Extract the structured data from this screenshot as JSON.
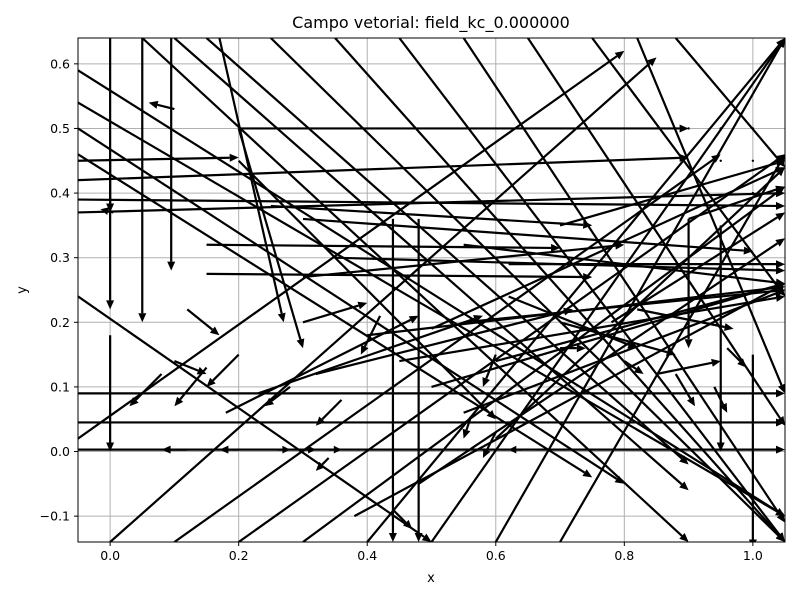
{
  "chart_data": {
    "type": "quiver",
    "title": "Campo vetorial: field_kc_0.000000",
    "xlabel": "x",
    "ylabel": "y",
    "xlim": [
      -0.05,
      1.05
    ],
    "ylim": [
      -0.14,
      0.64
    ],
    "xticks": [
      0.0,
      0.2,
      0.4,
      0.6,
      0.8,
      1.0
    ],
    "xtick_labels": [
      "0.0",
      "0.2",
      "0.4",
      "0.6",
      "0.8",
      "1.0"
    ],
    "yticks": [
      -0.1,
      0.0,
      0.1,
      0.2,
      0.3,
      0.4,
      0.5,
      0.6
    ],
    "ytick_labels": [
      "−0.1",
      "0.0",
      "0.1",
      "0.2",
      "0.3",
      "0.4",
      "0.5",
      "0.6"
    ],
    "grid": true,
    "arrow_color": "#000000",
    "grid_color": "#b0b0b0",
    "vectors": [
      {
        "x": 0.0,
        "y": 0.64,
        "u": 0.0,
        "v": -0.27
      },
      {
        "x": 0.0,
        "y": 0.45,
        "u": 0.0,
        "v": -0.23
      },
      {
        "x": 0.0,
        "y": 0.18,
        "u": 0.0,
        "v": -0.18
      },
      {
        "x": 0.05,
        "y": 0.64,
        "u": 0.0,
        "v": -0.44
      },
      {
        "x": 0.095,
        "y": 0.64,
        "u": 0.0,
        "v": -0.36
      },
      {
        "x": 0.005,
        "y": 0.37,
        "u": -0.02,
        "v": 0.005
      },
      {
        "x": 0.1,
        "y": 0.53,
        "u": -0.04,
        "v": 0.01
      },
      {
        "x": 0.12,
        "y": 0.22,
        "u": 0.05,
        "v": -0.04
      },
      {
        "x": 0.1,
        "y": 0.14,
        "u": 0.05,
        "v": -0.02
      },
      {
        "x": 0.44,
        "y": 0.36,
        "u": 0.0,
        "v": -0.5
      },
      {
        "x": 0.48,
        "y": 0.36,
        "u": 0.0,
        "v": -0.5
      },
      {
        "x": 0.9,
        "y": 0.36,
        "u": 0.0,
        "v": -0.2
      },
      {
        "x": 0.95,
        "y": 0.35,
        "u": 0.0,
        "v": -0.35
      },
      {
        "x": 1.0,
        "y": 0.15,
        "u": 0.0,
        "v": -0.3
      },
      {
        "x": -0.05,
        "y": 0.45,
        "u": 0.25,
        "v": 0.005
      },
      {
        "x": -0.05,
        "y": 0.42,
        "u": 0.95,
        "v": 0.035
      },
      {
        "x": -0.05,
        "y": 0.39,
        "u": 1.1,
        "v": -0.01
      },
      {
        "x": -0.05,
        "y": 0.37,
        "u": 1.1,
        "v": 0.03
      },
      {
        "x": -0.05,
        "y": 0.09,
        "u": 1.1,
        "v": 0.0
      },
      {
        "x": -0.05,
        "y": 0.045,
        "u": 1.1,
        "v": 0.0
      },
      {
        "x": -0.05,
        "y": 0.003,
        "u": 1.1,
        "v": 0.0
      },
      {
        "x": 0.15,
        "y": 0.32,
        "u": 0.55,
        "v": -0.005
      },
      {
        "x": 0.15,
        "y": 0.275,
        "u": 0.6,
        "v": -0.005
      },
      {
        "x": 0.2,
        "y": 0.5,
        "u": 0.7,
        "v": 0.0
      },
      {
        "x": 0.3,
        "y": 0.36,
        "u": 0.7,
        "v": -0.05
      },
      {
        "x": 0.35,
        "y": 0.3,
        "u": 0.7,
        "v": -0.02
      },
      {
        "x": 0.4,
        "y": 0.18,
        "u": 0.65,
        "v": 0.075
      },
      {
        "x": 0.45,
        "y": 0.14,
        "u": 0.6,
        "v": 0.1
      },
      {
        "x": 0.5,
        "y": 0.1,
        "u": 0.55,
        "v": 0.16
      },
      {
        "x": 0.55,
        "y": 0.06,
        "u": 0.5,
        "v": 0.19
      },
      {
        "x": -0.05,
        "y": 0.24,
        "u": 0.55,
        "v": -0.38
      },
      {
        "x": -0.05,
        "y": 0.02,
        "u": 0.85,
        "v": 0.6
      },
      {
        "x": 0.0,
        "y": -0.14,
        "u": 0.85,
        "v": 0.75
      },
      {
        "x": 0.1,
        "y": -0.14,
        "u": 0.85,
        "v": 0.6
      },
      {
        "x": 0.2,
        "y": -0.14,
        "u": 0.85,
        "v": 0.6
      },
      {
        "x": 0.3,
        "y": -0.14,
        "u": 0.75,
        "v": 0.55
      },
      {
        "x": 0.4,
        "y": -0.14,
        "u": 0.65,
        "v": 0.78
      },
      {
        "x": 0.5,
        "y": -0.14,
        "u": 0.55,
        "v": 0.78
      },
      {
        "x": 0.6,
        "y": -0.14,
        "u": 0.45,
        "v": 0.78
      },
      {
        "x": 0.7,
        "y": -0.14,
        "u": 0.35,
        "v": 0.6
      },
      {
        "x": -0.05,
        "y": 0.59,
        "u": 1.1,
        "v": -0.69
      },
      {
        "x": -0.05,
        "y": 0.54,
        "u": 1.1,
        "v": -0.64
      },
      {
        "x": -0.05,
        "y": 0.5,
        "u": 0.85,
        "v": -0.55
      },
      {
        "x": -0.05,
        "y": 0.46,
        "u": 0.8,
        "v": -0.5
      },
      {
        "x": 0.05,
        "y": 0.64,
        "u": 0.85,
        "v": -0.78
      },
      {
        "x": 0.1,
        "y": 0.64,
        "u": 0.8,
        "v": -0.7
      },
      {
        "x": 0.15,
        "y": 0.64,
        "u": 0.75,
        "v": -0.66
      },
      {
        "x": 0.25,
        "y": 0.64,
        "u": 0.8,
        "v": -0.78
      },
      {
        "x": 0.35,
        "y": 0.64,
        "u": 0.7,
        "v": -0.78
      },
      {
        "x": 0.45,
        "y": 0.64,
        "u": 0.6,
        "v": -0.78
      },
      {
        "x": 0.55,
        "y": 0.64,
        "u": 0.5,
        "v": -0.75
      },
      {
        "x": 0.65,
        "y": 0.64,
        "u": 0.4,
        "v": -0.6
      },
      {
        "x": 0.75,
        "y": 0.64,
        "u": 0.3,
        "v": -0.4
      },
      {
        "x": 0.2,
        "y": 0.45,
        "u": 0.4,
        "v": -0.4
      },
      {
        "x": 0.17,
        "y": 0.64,
        "u": 0.1,
        "v": -0.44
      },
      {
        "x": 0.2,
        "y": 0.5,
        "u": 0.1,
        "v": -0.34
      },
      {
        "x": 0.62,
        "y": 0.24,
        "u": 0.2,
        "v": -0.08
      },
      {
        "x": 0.7,
        "y": 0.2,
        "u": 0.18,
        "v": -0.05
      },
      {
        "x": 0.82,
        "y": 0.22,
        "u": 0.15,
        "v": -0.03
      },
      {
        "x": 0.85,
        "y": 0.12,
        "u": 0.1,
        "v": 0.02
      },
      {
        "x": 0.62,
        "y": 0.29,
        "u": 0.43,
        "v": 0.0
      },
      {
        "x": 0.6,
        "y": 0.14,
        "u": 0.45,
        "v": 0.12
      },
      {
        "x": 0.55,
        "y": 0.2,
        "u": 0.5,
        "v": 0.05
      },
      {
        "x": 0.6,
        "y": 0.02,
        "u": 0.45,
        "v": 0.42
      },
      {
        "x": 0.5,
        "y": 0.19,
        "u": 0.55,
        "v": 0.25
      },
      {
        "x": 0.7,
        "y": 0.35,
        "u": 0.35,
        "v": 0.1
      },
      {
        "x": 0.78,
        "y": 0.2,
        "u": 0.27,
        "v": 0.17
      },
      {
        "x": 0.48,
        "y": -0.05,
        "u": 0.57,
        "v": 0.38
      },
      {
        "x": 0.38,
        "y": -0.1,
        "u": 0.67,
        "v": 0.36
      },
      {
        "x": 0.88,
        "y": 0.64,
        "u": 0.17,
        "v": -0.2
      },
      {
        "x": 0.82,
        "y": 0.64,
        "u": 0.23,
        "v": -0.55
      },
      {
        "x": 0.3,
        "y": 0.27,
        "u": 0.5,
        "v": 0.05
      },
      {
        "x": 0.32,
        "y": 0.12,
        "u": 0.4,
        "v": 0.1
      },
      {
        "x": 0.23,
        "y": 0.09,
        "u": 0.35,
        "v": 0.12
      },
      {
        "x": 0.18,
        "y": 0.06,
        "u": 0.3,
        "v": 0.15
      },
      {
        "x": 0.9,
        "y": 0.36,
        "u": 0.15,
        "v": 0.05
      },
      {
        "x": 0.25,
        "y": 0.38,
        "u": 0.5,
        "v": -0.03
      },
      {
        "x": 0.55,
        "y": 0.32,
        "u": 0.5,
        "v": -0.06
      },
      {
        "x": 0.3,
        "y": 0.2,
        "u": 0.1,
        "v": 0.03
      },
      {
        "x": 0.2,
        "y": 0.15,
        "u": -0.05,
        "v": -0.05
      },
      {
        "x": 0.15,
        "y": 0.13,
        "u": -0.05,
        "v": -0.06
      },
      {
        "x": 0.08,
        "y": 0.12,
        "u": -0.05,
        "v": -0.05
      },
      {
        "x": 0.28,
        "y": 0.1,
        "u": -0.04,
        "v": -0.03
      },
      {
        "x": 0.36,
        "y": 0.08,
        "u": -0.04,
        "v": -0.04
      },
      {
        "x": 0.42,
        "y": 0.21,
        "u": -0.03,
        "v": -0.06
      },
      {
        "x": 0.6,
        "y": 0.15,
        "u": -0.02,
        "v": -0.05
      },
      {
        "x": 0.56,
        "y": 0.05,
        "u": -0.01,
        "v": -0.03
      },
      {
        "x": 0.6,
        "y": 0.03,
        "u": -0.02,
        "v": -0.04
      },
      {
        "x": 0.88,
        "y": 0.12,
        "u": 0.03,
        "v": -0.05
      },
      {
        "x": 0.94,
        "y": 0.1,
        "u": 0.02,
        "v": -0.04
      },
      {
        "x": 0.96,
        "y": 0.16,
        "u": 0.03,
        "v": -0.03
      },
      {
        "x": 0.8,
        "y": 0.14,
        "u": 0.03,
        "v": -0.02
      },
      {
        "x": 0.7,
        "y": 0.16,
        "u": 0.04,
        "v": 0.0
      },
      {
        "x": 0.12,
        "y": 0.003,
        "u": -0.04,
        "v": 0.0
      },
      {
        "x": 0.2,
        "y": 0.003,
        "u": -0.03,
        "v": 0.0
      },
      {
        "x": 0.26,
        "y": 0.003,
        "u": 0.02,
        "v": 0.0
      },
      {
        "x": 0.3,
        "y": 0.003,
        "u": 0.02,
        "v": 0.0
      },
      {
        "x": 0.34,
        "y": 0.003,
        "u": 0.02,
        "v": 0.0
      },
      {
        "x": 0.64,
        "y": 0.003,
        "u": -0.02,
        "v": 0.0
      },
      {
        "x": 0.44,
        "y": -0.09,
        "u": 0.03,
        "v": -0.03
      },
      {
        "x": 0.34,
        "y": -0.01,
        "u": -0.02,
        "v": -0.02
      },
      {
        "x": 0.9,
        "y": 0.5,
        "u": 0.001,
        "v": 0.0
      },
      {
        "x": 0.95,
        "y": 0.5,
        "u": 0.001,
        "v": 0.0
      },
      {
        "x": 1.0,
        "y": 0.5,
        "u": 0.001,
        "v": 0.0
      },
      {
        "x": 0.95,
        "y": 0.45,
        "u": 0.001,
        "v": 0.0
      },
      {
        "x": 1.0,
        "y": 0.45,
        "u": 0.001,
        "v": 0.0
      },
      {
        "x": 1.0,
        "y": 0.4,
        "u": 0.001,
        "v": 0.0
      }
    ]
  }
}
